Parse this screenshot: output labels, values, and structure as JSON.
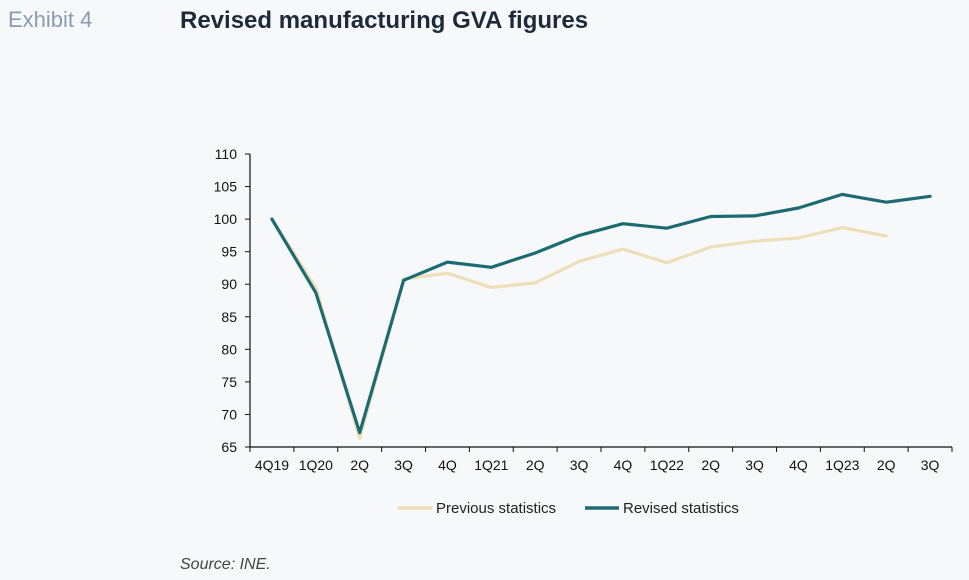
{
  "header": {
    "exhibit": "Exhibit 4",
    "title": "Revised manufacturing GVA figures"
  },
  "footer": {
    "source": "Source: INE."
  },
  "chart_data": {
    "type": "line",
    "title": "Revised manufacturing GVA figures",
    "xlabel": "",
    "ylabel": "",
    "ylim": [
      65,
      110
    ],
    "yticks": [
      65,
      70,
      75,
      80,
      85,
      90,
      95,
      100,
      105,
      110
    ],
    "categories": [
      "4Q19",
      "1Q20",
      "2Q",
      "3Q",
      "4Q",
      "1Q21",
      "2Q",
      "3Q",
      "4Q",
      "1Q22",
      "2Q",
      "3Q",
      "4Q",
      "1Q23",
      "2Q",
      "3Q"
    ],
    "grid": false,
    "legend_position": "bottom",
    "series": [
      {
        "name": "Previous statistics",
        "color": "#efdfb8",
        "values": [
          100,
          89.5,
          66.3,
          90.8,
          91.7,
          89.5,
          90.2,
          93.5,
          95.4,
          93.3,
          95.7,
          96.6,
          97.1,
          98.7,
          97.4,
          null
        ]
      },
      {
        "name": "Revised statistics",
        "color": "#1c6b73",
        "values": [
          100,
          88.7,
          67.2,
          90.6,
          93.4,
          92.6,
          94.8,
          97.5,
          99.3,
          98.6,
          100.4,
          100.5,
          101.7,
          103.8,
          102.6,
          103.5
        ]
      }
    ]
  }
}
